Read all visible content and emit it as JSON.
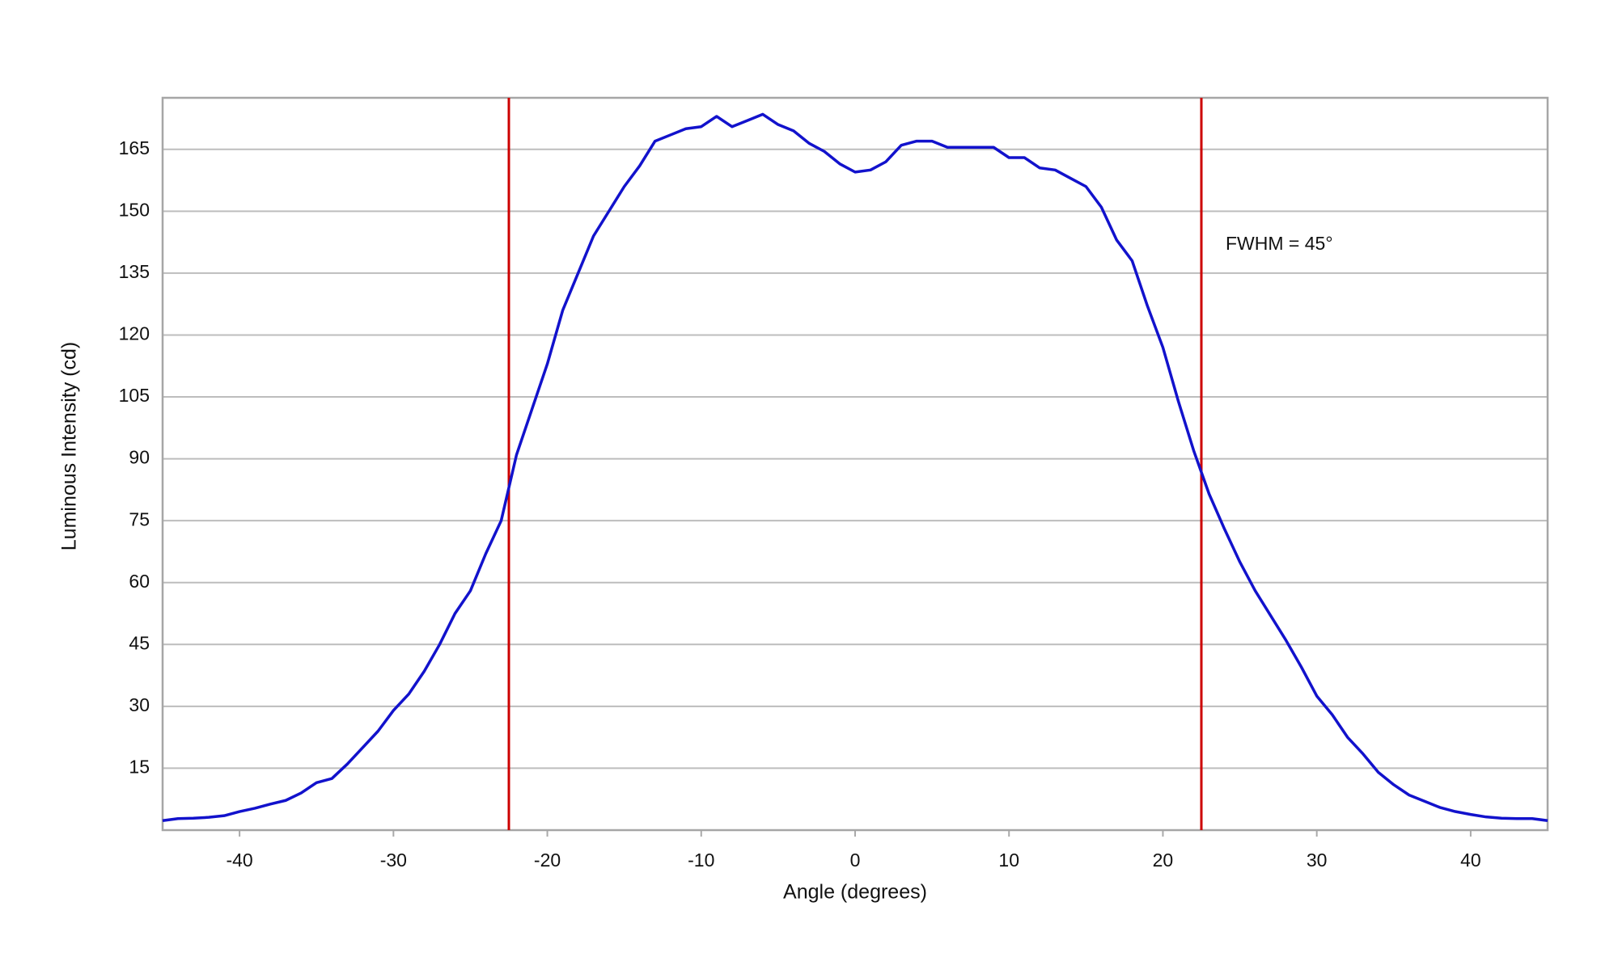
{
  "chart_data": {
    "type": "line",
    "x_label": "Angle (degrees)",
    "y_label": "Luminous Intensity (cd)",
    "x": [
      -45,
      -44,
      -43,
      -42,
      -41,
      -40,
      -39,
      -38,
      -37,
      -36,
      -35,
      -34,
      -33,
      -32,
      -31,
      -30,
      -29,
      -28,
      -27,
      -26,
      -25,
      -24,
      -23,
      -22,
      -21,
      -20,
      -19,
      -18,
      -17,
      -16,
      -15,
      -14,
      -13,
      -12,
      -11,
      -10,
      -9,
      -8,
      -7,
      -6,
      -5,
      -4,
      -3,
      -2,
      -1,
      0,
      1,
      2,
      3,
      4,
      5,
      6,
      7,
      8,
      9,
      10,
      11,
      12,
      13,
      14,
      15,
      16,
      17,
      18,
      19,
      20,
      21,
      22,
      23,
      24,
      25,
      26,
      27,
      28,
      29,
      30,
      31,
      32,
      33,
      34,
      35,
      36,
      37,
      38,
      39,
      40,
      41,
      42,
      43,
      44,
      45
    ],
    "series": [
      {
        "name": "Luminous Intensity",
        "color": "#1212cc",
        "values": [
          2.3,
          2.8,
          2.9,
          3.1,
          3.5,
          4.5,
          5.3,
          6.3,
          7.2,
          9,
          11.5,
          12.5,
          16,
          20,
          24,
          29,
          33,
          38.5,
          45,
          52.5,
          58,
          67,
          75,
          91,
          102,
          113,
          126,
          135,
          144,
          150,
          156,
          161,
          167,
          168.5,
          170,
          170.5,
          173,
          170.5,
          172,
          173.5,
          171,
          169.5,
          166.5,
          164.5,
          161.5,
          159.5,
          160,
          162,
          166,
          167,
          167,
          165.5,
          165.5,
          165.5,
          165.5,
          163,
          163,
          160.5,
          160,
          158,
          156,
          151,
          143,
          138,
          127,
          117,
          104,
          92,
          81.5,
          73,
          65,
          58,
          52,
          46,
          39.5,
          32.5,
          28,
          22.5,
          18.5,
          14,
          11,
          8.5,
          7,
          5.5,
          4.5,
          3.8,
          3.2,
          2.9,
          2.8,
          2.8,
          2.3
        ]
      }
    ],
    "vlines": {
      "values": [
        -22.5,
        22.5
      ],
      "color": "#cc0000"
    },
    "annotations": [
      {
        "text": "FWHM = 45°"
      }
    ],
    "xlim": [
      -45,
      45
    ],
    "xticks": [
      -40,
      -30,
      -20,
      -10,
      0,
      10,
      20,
      30,
      40
    ],
    "ylim": [
      0,
      177.5
    ],
    "yticks": [
      15,
      30,
      45,
      60,
      75,
      90,
      105,
      120,
      135,
      150,
      165
    ],
    "grid": true
  }
}
